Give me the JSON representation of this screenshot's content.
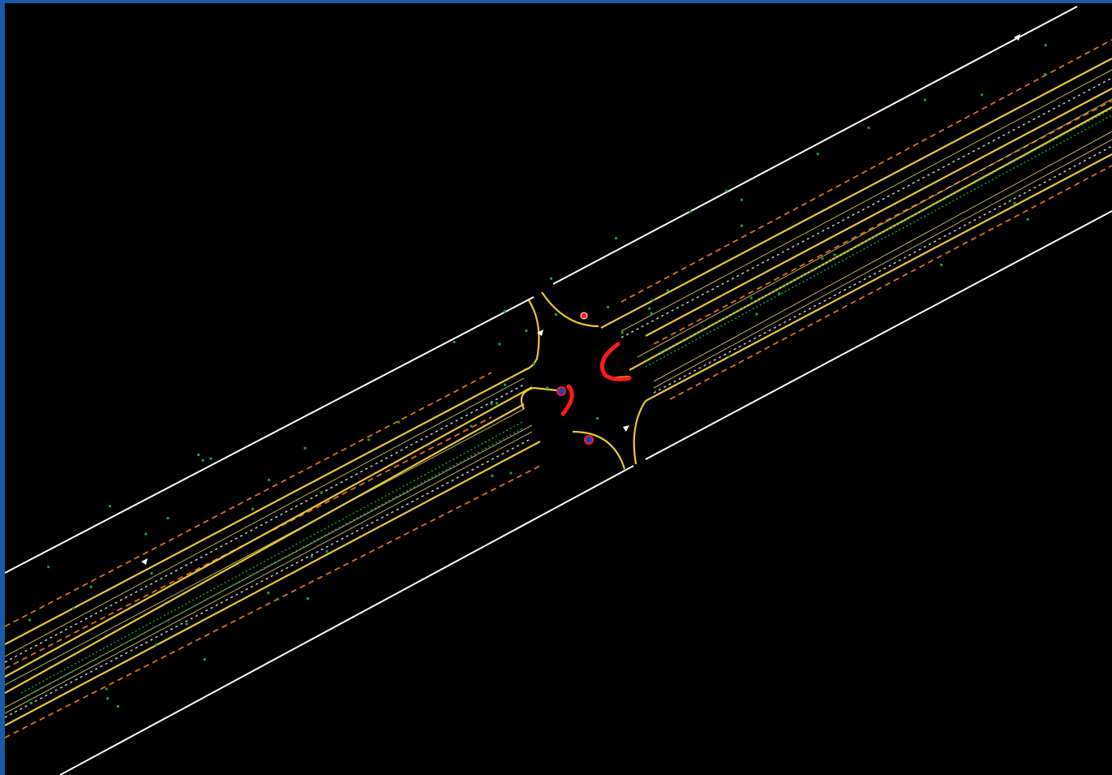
{
  "drawing": {
    "kind": "cad-plan-view",
    "subject": "divided-road-with-intersection",
    "colors": {
      "frame": "#1a5aa8",
      "background": "#000000",
      "right_of_way": "#ffffff",
      "curb": "#e8c832",
      "lane_line": "#d8d060",
      "edge_dash": "#e07020",
      "median_nose": "#ff1a1a",
      "vegetation": "#1aa030",
      "marker": "#ffffff"
    }
  }
}
